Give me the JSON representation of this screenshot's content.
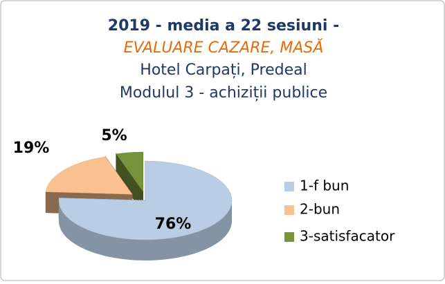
{
  "chart_data": {
    "type": "pie3d",
    "title": [
      "2019 -  media a 22 sesiuni -",
      "EVALUARE CAZARE, MASĂ",
      "Hotel Carpați, Predeal",
      "Modulul 3 - achiziții publice"
    ],
    "categories": [
      "1-f bun",
      "2-bun",
      "3-satisfacator"
    ],
    "values": [
      76,
      19,
      5
    ],
    "value_labels": [
      "76%",
      "19%",
      "5%"
    ],
    "colors": [
      "#b9cde5",
      "#fac090",
      "#77933c"
    ],
    "legend": "right"
  }
}
